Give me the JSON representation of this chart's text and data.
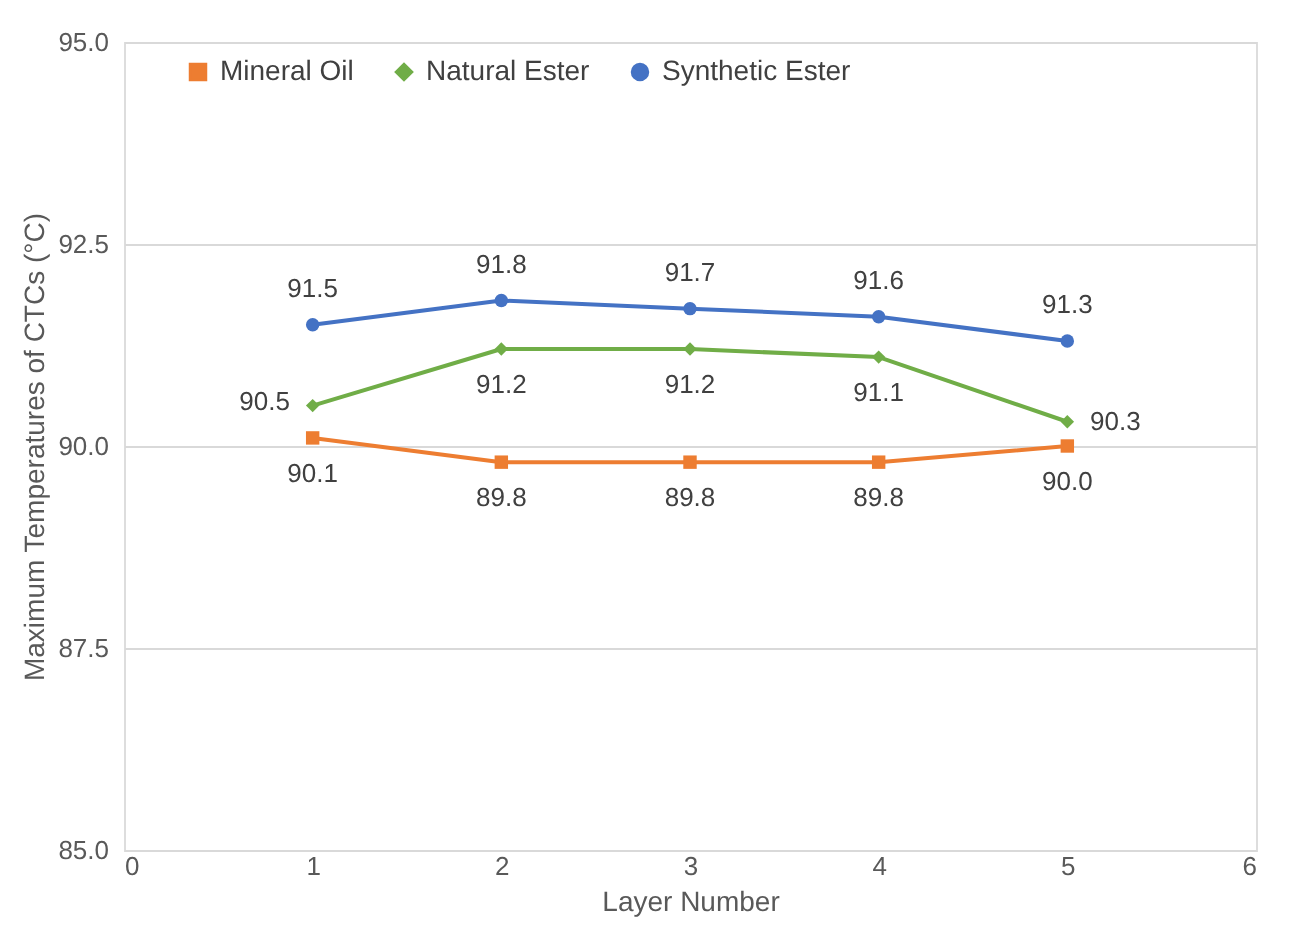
{
  "chart_data": {
    "type": "line",
    "xlabel": "Layer Number",
    "ylabel": "Maximum Temperatures of CTCs (°C)",
    "x": [
      1,
      2,
      3,
      4,
      5
    ],
    "series": [
      {
        "name": "Mineral Oil",
        "color": "#ed7d31",
        "marker": "square",
        "values": [
          90.1,
          89.8,
          89.8,
          89.8,
          90.0
        ],
        "value_labels": [
          "90.1",
          "89.8",
          "89.8",
          "89.8",
          "90.0"
        ]
      },
      {
        "name": "Natural Ester",
        "color": "#70ad47",
        "marker": "diamond",
        "values": [
          90.5,
          91.2,
          91.2,
          91.1,
          90.3
        ],
        "value_labels": [
          "90.5",
          "91.2",
          "91.2",
          "91.1",
          "90.3"
        ]
      },
      {
        "name": "Synthetic Ester",
        "color": "#4472c4",
        "marker": "circle",
        "values": [
          91.5,
          91.8,
          91.7,
          91.6,
          91.3
        ],
        "value_labels": [
          "91.5",
          "91.8",
          "91.7",
          "91.6",
          "91.3"
        ]
      }
    ],
    "xlim": [
      0,
      6
    ],
    "xticks": [
      0,
      1,
      2,
      3,
      4,
      5,
      6
    ],
    "ylim": [
      85,
      95
    ],
    "yticks": [
      {
        "value": 85,
        "label": "85.0"
      },
      {
        "value": 87.5,
        "label": "87.5"
      },
      {
        "value": 90,
        "label": "90.0"
      },
      {
        "value": 92.5,
        "label": "92.5"
      },
      {
        "value": 95,
        "label": "95.0"
      }
    ],
    "grid": "y",
    "legend": "top",
    "line_style": "solid"
  }
}
